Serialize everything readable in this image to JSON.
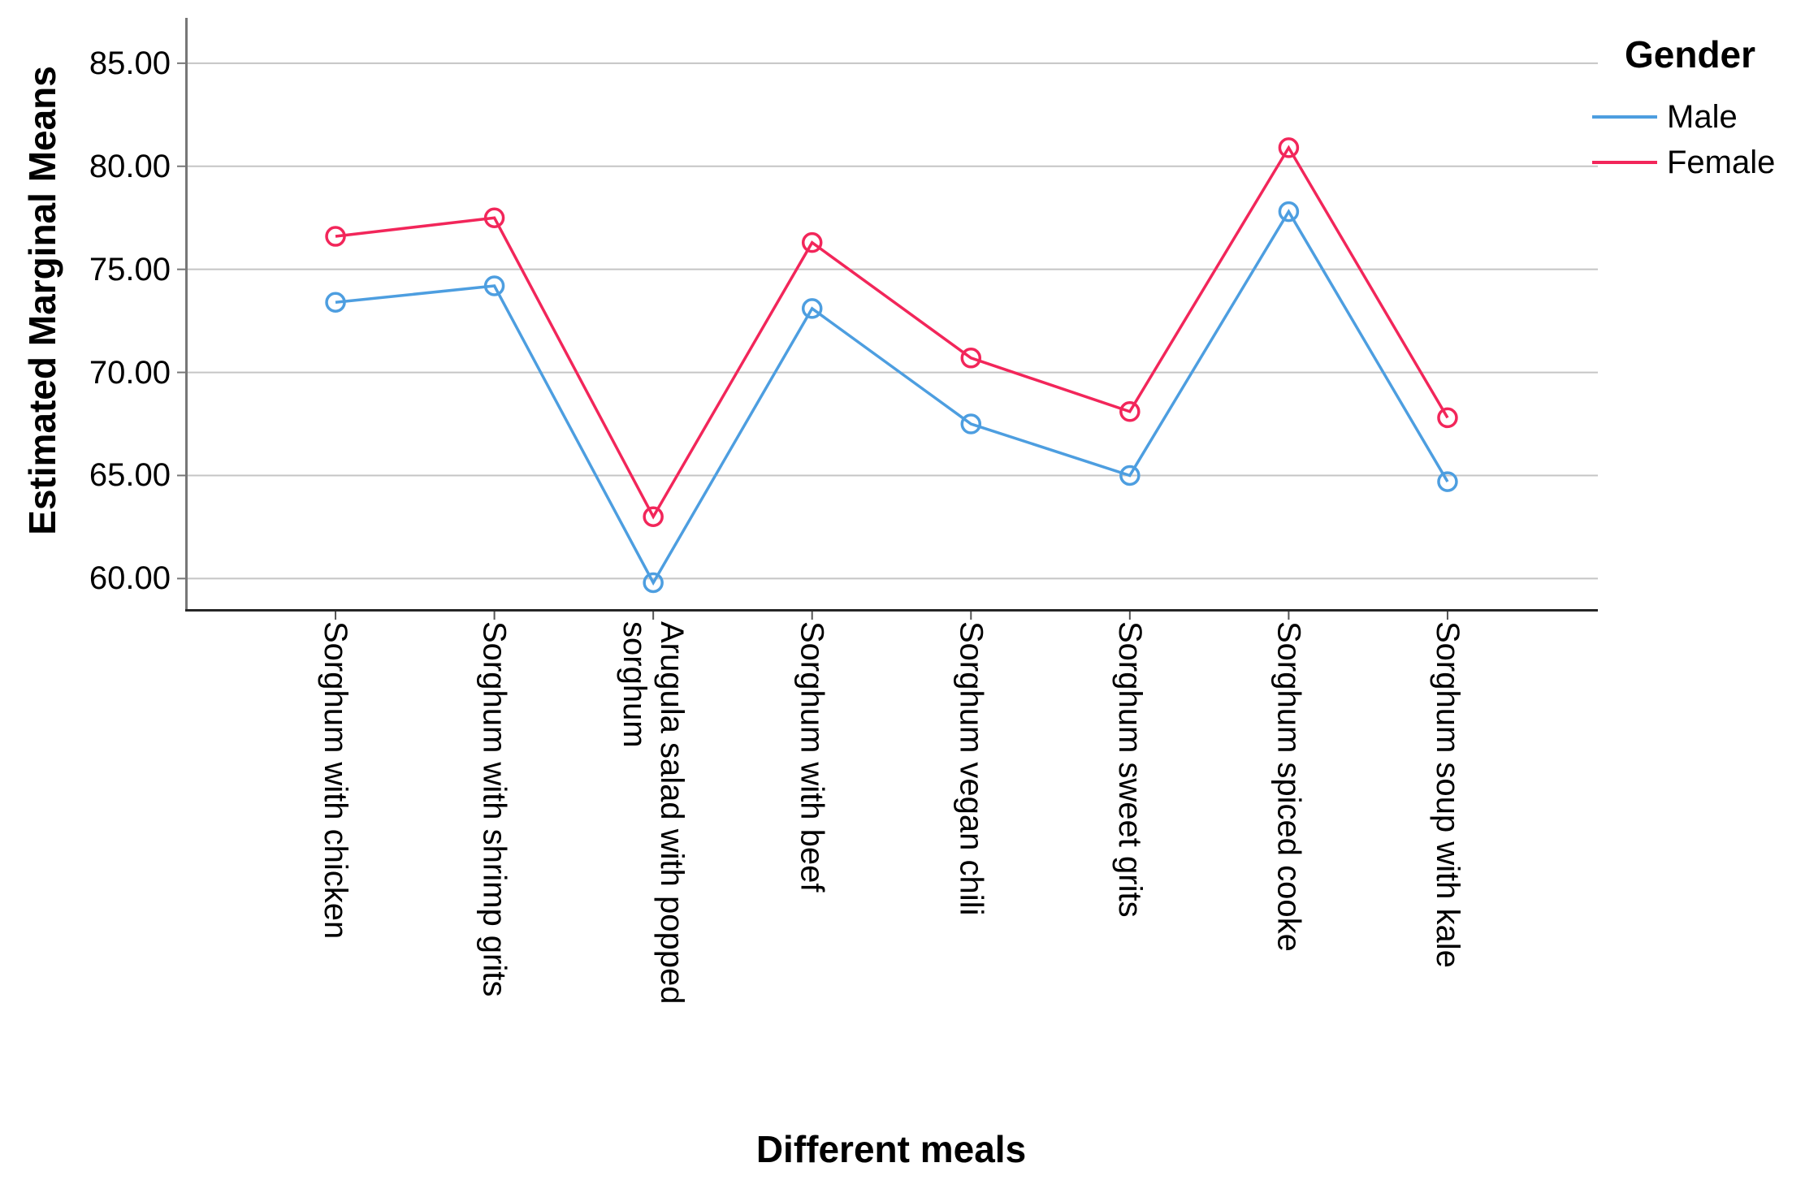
{
  "chart_data": {
    "type": "line",
    "title": "",
    "xlabel": "Different meals",
    "ylabel": "Estimated Marginal Means",
    "categories": [
      "Sorghum with chicken",
      "Sorghum with shrimp grits",
      "Arugula salad with popped sorghum",
      "Sorghum with beef",
      "Sorghum vegan chili",
      "Sorghum sweet grits",
      "Sorghum spiced cooke",
      "Sorghum soup with kale"
    ],
    "series": [
      {
        "name": "Male",
        "color": "#4D9EE0",
        "values": [
          73.4,
          74.2,
          59.8,
          73.1,
          67.5,
          65.0,
          77.8,
          64.7
        ]
      },
      {
        "name": "Female",
        "color": "#F2265A",
        "values": [
          76.6,
          77.5,
          63.0,
          76.3,
          70.7,
          68.1,
          80.9,
          67.8
        ]
      }
    ],
    "y_ticks": [
      85,
      80,
      75,
      70,
      65,
      60
    ],
    "y_tick_labels": [
      "85.00",
      "80.00",
      "75.00",
      "70.00",
      "65.00",
      "60.00"
    ],
    "ylim": [
      58.4,
      87.2
    ],
    "grid": "horizontal",
    "marker": "open-circle",
    "legend": {
      "title": "Gender",
      "position": "top-right"
    },
    "colors": {
      "gridline": "#C5C5C5",
      "y_axis_line": "#777777",
      "x_axis_line": "#262626",
      "tick": "#555555",
      "text": "#000000"
    }
  }
}
